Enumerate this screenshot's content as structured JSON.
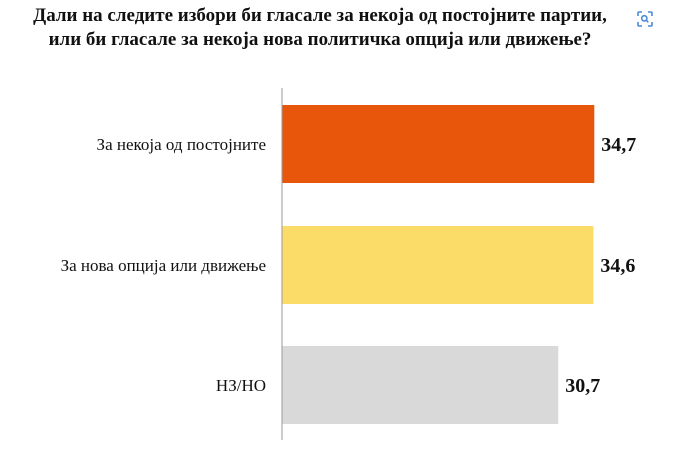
{
  "chart_data": {
    "type": "bar",
    "orientation": "horizontal",
    "title": "Дали на следите избори би гласале за некоја од постојните партии, или би гласале за некоја нова политичка опција или движење?",
    "categories": [
      "За некоја од постојните",
      "За нова опција или движење",
      "НЗ/НО"
    ],
    "values": [
      34.7,
      34.6,
      30.7
    ],
    "value_labels": [
      "34,7",
      "34,6",
      "30,7"
    ],
    "colors": [
      "#E8560B",
      "#FBDC69",
      "#D9D9D9"
    ],
    "xlim": [
      0,
      42
    ],
    "grid": false,
    "legend": "none"
  },
  "toolbar": {
    "lens_icon": "visual-search-icon"
  }
}
